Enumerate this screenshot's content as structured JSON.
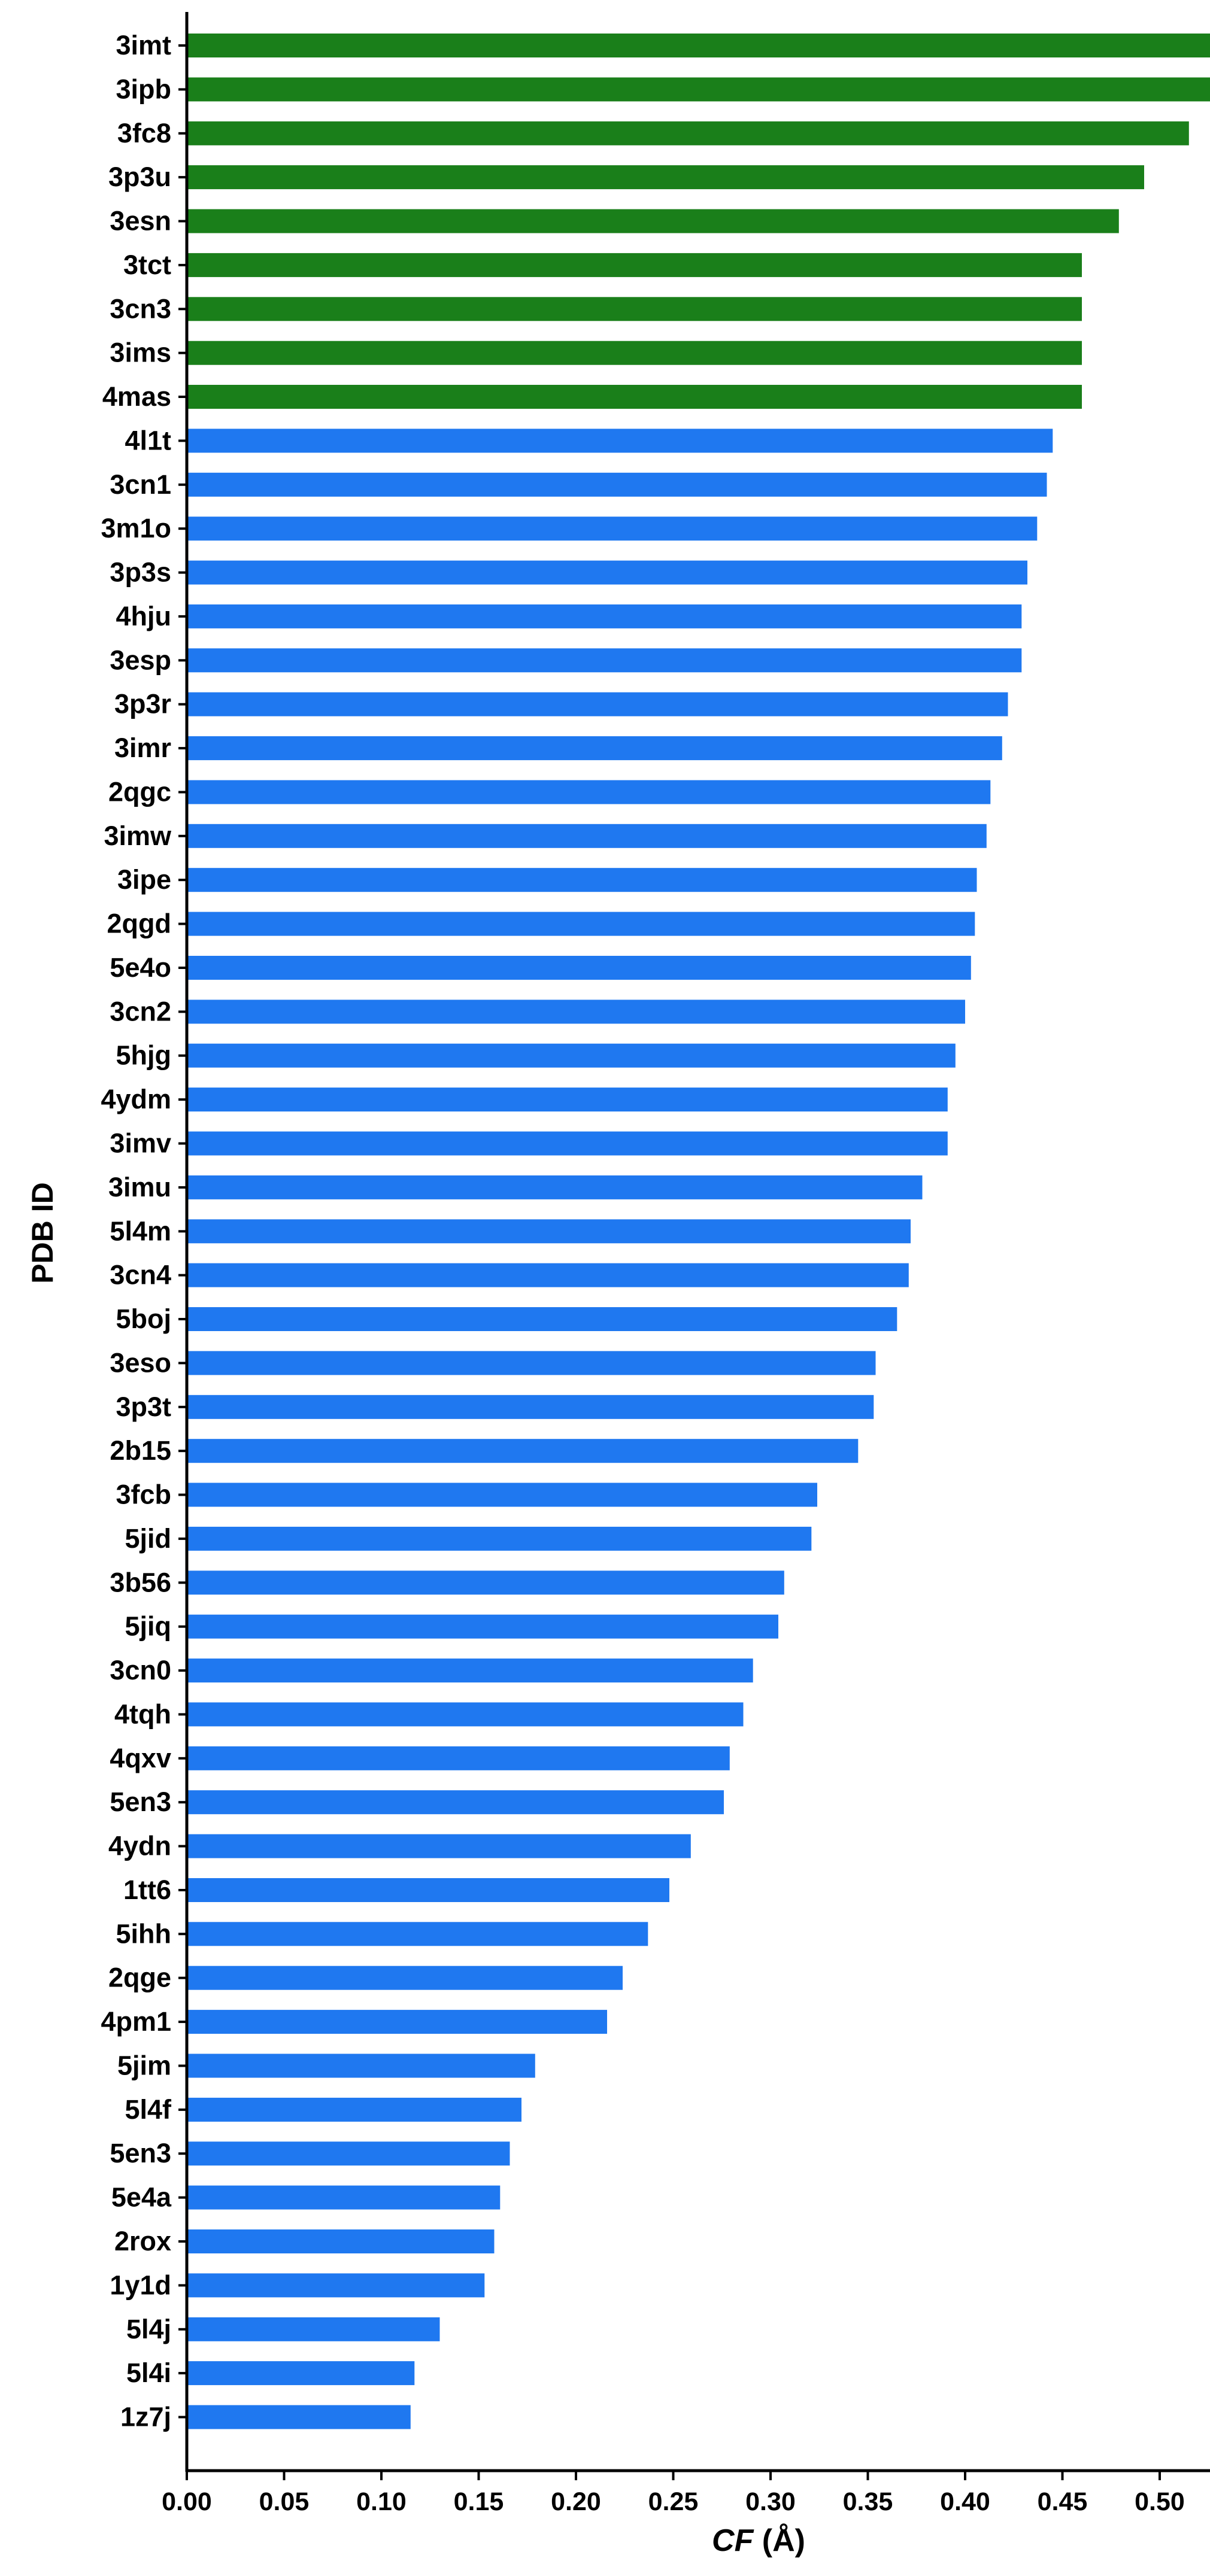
{
  "chart_data": {
    "type": "bar",
    "orientation": "horizontal",
    "xlabel_italic": "CF",
    "xlabel_unit": "(Å)",
    "ylabel": "PDB ID",
    "xlim": [
      0,
      0.6
    ],
    "xticks": [
      "0.00",
      "0.05",
      "0.10",
      "0.15",
      "0.20",
      "0.25",
      "0.30",
      "0.35",
      "0.40",
      "0.45",
      "0.50",
      "0.55",
      "0.60"
    ],
    "grid": false,
    "colors": {
      "highlight": "#1a7f1a",
      "default": "#1f78f0",
      "axis": "#000000"
    },
    "categories": [
      "3imt",
      "3ipb",
      "3fc8",
      "3p3u",
      "3esn",
      "3tct",
      "3cn3",
      "3ims",
      "4mas",
      "4l1t",
      "3cn1",
      "3m1o",
      "3p3s",
      "4hju",
      "3esp",
      "3p3r",
      "3imr",
      "2qgc",
      "3imw",
      "3ipe",
      "2qgd",
      "5e4o",
      "3cn2",
      "5hjg",
      "4ydm",
      "3imv",
      "3imu",
      "5l4m",
      "3cn4",
      "5boj",
      "3eso",
      "3p3t",
      "2b15",
      "3fcb",
      "5jid",
      "3b56",
      "5jiq",
      "3cn0",
      "4tqh",
      "4qxv",
      "5en3",
      "4ydn",
      "1tt6",
      "5ihh",
      "2qge",
      "4pm1",
      "5jim",
      "5l4f",
      "5en3",
      "5e4a",
      "2rox",
      "1y1d",
      "5l4j",
      "5l4i",
      "1z7j"
    ],
    "values": [
      0.562,
      0.532,
      0.515,
      0.492,
      0.479,
      0.46,
      0.46,
      0.46,
      0.46,
      0.445,
      0.442,
      0.437,
      0.432,
      0.429,
      0.429,
      0.422,
      0.419,
      0.413,
      0.411,
      0.406,
      0.405,
      0.403,
      0.4,
      0.395,
      0.391,
      0.391,
      0.378,
      0.372,
      0.371,
      0.365,
      0.354,
      0.353,
      0.345,
      0.324,
      0.321,
      0.307,
      0.304,
      0.291,
      0.286,
      0.279,
      0.276,
      0.259,
      0.248,
      0.237,
      0.224,
      0.216,
      0.179,
      0.172,
      0.166,
      0.161,
      0.158,
      0.153,
      0.13,
      0.117,
      0.115
    ],
    "highlighted": [
      true,
      true,
      true,
      true,
      true,
      true,
      true,
      true,
      true,
      false,
      false,
      false,
      false,
      false,
      false,
      false,
      false,
      false,
      false,
      false,
      false,
      false,
      false,
      false,
      false,
      false,
      false,
      false,
      false,
      false,
      false,
      false,
      false,
      false,
      false,
      false,
      false,
      false,
      false,
      false,
      false,
      false,
      false,
      false,
      false,
      false,
      false,
      false,
      false,
      false,
      false,
      false,
      false,
      false,
      false
    ]
  }
}
